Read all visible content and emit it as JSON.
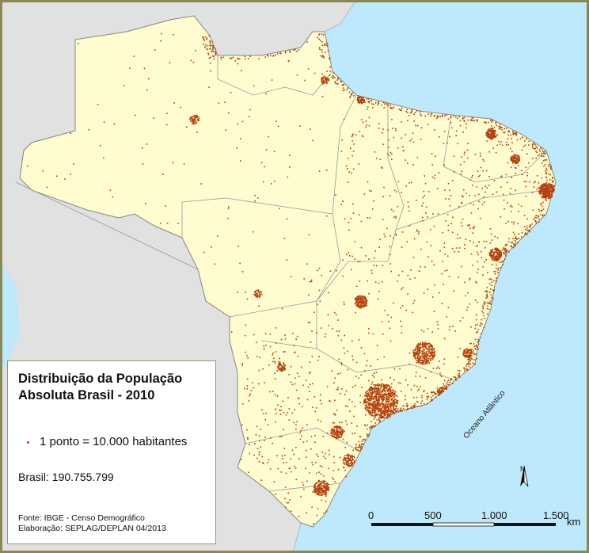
{
  "legend": {
    "title_line1": "Distribuição da População",
    "title_line2": "Absoluta Brasil - 2010",
    "dot_key": "1 ponto = 10.000 habitantes",
    "total": "Brasil: 190.755.799",
    "source": "Fonte: IBGE - Censo Demográfico",
    "credit": "Elaboração: SEPLAG/DEPLAN 04/2013"
  },
  "map": {
    "ocean_label": "Oceano Atlântico",
    "north_arrow": "N",
    "scale_ticks": [
      "0",
      "500",
      "1.000",
      "1.500"
    ],
    "scale_unit": "km",
    "colors": {
      "ocean": "#bee8fb",
      "brazil_land": "#fffdd0",
      "neighbor_land": "#e1e1e1",
      "dots": "#b5400d",
      "frame": "#8a8850"
    }
  }
}
